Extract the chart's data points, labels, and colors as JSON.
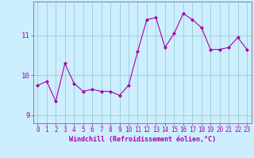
{
  "x": [
    0,
    1,
    2,
    3,
    4,
    5,
    6,
    7,
    8,
    9,
    10,
    11,
    12,
    13,
    14,
    15,
    16,
    17,
    18,
    19,
    20,
    21,
    22,
    23
  ],
  "y": [
    9.75,
    9.85,
    9.35,
    10.3,
    9.8,
    9.6,
    9.65,
    9.6,
    9.6,
    9.5,
    9.75,
    10.6,
    11.4,
    11.45,
    10.7,
    11.05,
    11.55,
    11.4,
    11.2,
    10.65,
    10.65,
    10.7,
    10.95,
    10.65
  ],
  "line_color": "#aa00aa",
  "marker": "D",
  "marker_size": 2,
  "bg_color": "#cceeff",
  "grid_color": "#99cccc",
  "xlabel": "Windchill (Refroidissement éolien,°C)",
  "xlabel_color": "#aa00aa",
  "tick_color": "#aa00aa",
  "ylim": [
    8.8,
    11.85
  ],
  "yticks": [
    9,
    10,
    11
  ],
  "xlim": [
    -0.5,
    23.5
  ],
  "xticks": [
    0,
    1,
    2,
    3,
    4,
    5,
    6,
    7,
    8,
    9,
    10,
    11,
    12,
    13,
    14,
    15,
    16,
    17,
    18,
    19,
    20,
    21,
    22,
    23
  ],
  "spine_color": "#8888aa"
}
